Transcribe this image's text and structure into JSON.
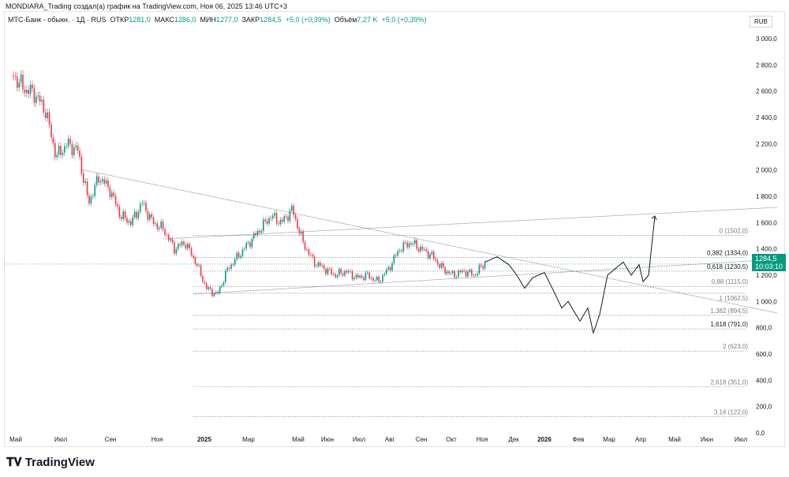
{
  "header": {
    "credit": "MONDIARA_Trading создал(а) график на TradingView.com, Ноя 06, 2025 13:46 UTC+3"
  },
  "legend": {
    "symbol": "МТС-Банк - обыкн. · 1Д · RUS",
    "open_label": "ОТКР",
    "open": "1281,0",
    "high_label": "МАКС",
    "high": "1286,0",
    "low_label": "МИН",
    "low": "1277,0",
    "close_label": "ЗАКР",
    "close": "1284,5",
    "change": "+5,0 (+0,39%)",
    "volume_label": "Объём",
    "volume": "7,27 K",
    "volume_change": "+5,0 (+0,39%)"
  },
  "currency": "RUB",
  "price_tag": {
    "price": "1284,5",
    "countdown": "10:03:10"
  },
  "logo": "TradingView",
  "colors": {
    "up": "#089981",
    "down": "#f23645",
    "projection": "#131722"
  },
  "chart_data": {
    "type": "candlestick",
    "ylim": [
      0,
      3000
    ],
    "yticks": [
      "0,0",
      "200,0",
      "400,0",
      "600,0",
      "800,0",
      "1 000,0",
      "1 200,0",
      "1 400,0",
      "1 600,0",
      "1 800,0",
      "2 000,0",
      "2 200,0",
      "2 400,0",
      "2 600,0",
      "2 800,0",
      "3 000,0"
    ],
    "ytick_values": [
      0,
      200,
      400,
      600,
      800,
      1000,
      1200,
      1400,
      1600,
      1800,
      2000,
      2200,
      2400,
      2600,
      2800,
      3000
    ],
    "xticks": [
      "Май",
      "Июл",
      "Сен",
      "Ноя",
      "2025",
      "Мар",
      "Май",
      "Июн",
      "Июл",
      "Авг",
      "Сен",
      "Окт",
      "Ноя",
      "Дек",
      "2026",
      "Фев",
      "Мар",
      "Апр",
      "Май",
      "Июн",
      "Июл"
    ],
    "price_path": [
      2720,
      2620,
      2580,
      2450,
      2100,
      2200,
      2150,
      1750,
      1950,
      1850,
      1650,
      1600,
      1750,
      1600,
      1550,
      1400,
      1450,
      1300,
      1100,
      1050,
      1250,
      1350,
      1450,
      1550,
      1650,
      1600,
      1700,
      1450,
      1300,
      1250,
      1200,
      1230,
      1180,
      1200,
      1150,
      1250,
      1400,
      1450,
      1400,
      1350,
      1250,
      1200,
      1230,
      1200,
      1300
    ],
    "projection_path": [
      1300,
      1340,
      1280,
      1200,
      1100,
      1180,
      1220,
      1100,
      950,
      1000,
      850,
      950,
      760,
      900,
      1200,
      1250,
      1300,
      1200,
      1280,
      1150,
      1200,
      1650
    ],
    "fib_levels": [
      {
        "label": "0 (1502,0)",
        "value": 1502
      },
      {
        "label": "0,382 (1334,0)",
        "value": 1334
      },
      {
        "label": "0,618 (1230,5)",
        "value": 1230.5
      },
      {
        "label": "0,88 (1115,0)",
        "value": 1115
      },
      {
        "label": "1 (1062,5)",
        "value": 1062.5
      },
      {
        "label": "1,382 (894,5)",
        "value": 894.5
      },
      {
        "label": "1,618 (791,0)",
        "value": 791
      },
      {
        "label": "2 (623,0)",
        "value": 623
      },
      {
        "label": "2,618 (351,0)",
        "value": 351
      },
      {
        "label": "3,14 (122,0)",
        "value": 122
      }
    ],
    "last_price": 1284.5
  }
}
